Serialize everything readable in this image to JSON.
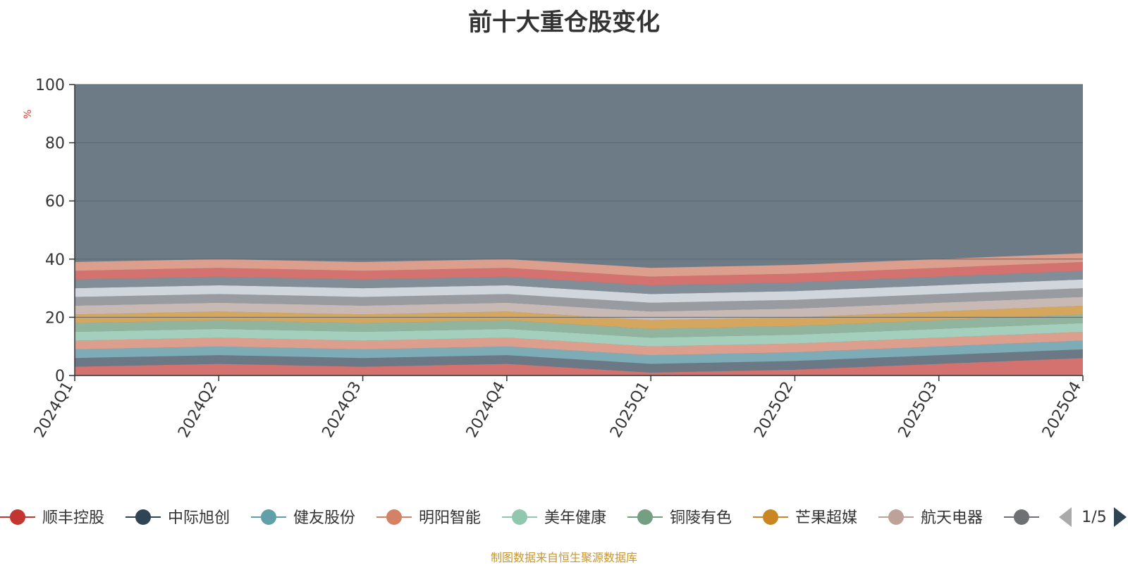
{
  "title": "前十大重仓股变化",
  "footer": "制图数据来自恒生聚源数据库",
  "pagination": {
    "text": "1/5"
  },
  "chart_data": {
    "type": "area",
    "title": "前十大重仓股变化",
    "ylabel": "%",
    "ylim": [
      0,
      100
    ],
    "yticks": [
      0,
      20,
      40,
      60,
      80,
      100
    ],
    "grid": true,
    "legend_position": "bottom",
    "categories": [
      "2024Q1",
      "2024Q2",
      "2024Q3",
      "2024Q4",
      "2025Q1",
      "2025Q2",
      "2025Q3",
      "2025Q4"
    ],
    "background_color": "#6d7b87",
    "series": [
      {
        "name": "顺丰控股",
        "color": "#d9726e",
        "values": [
          3,
          4,
          3,
          4,
          1,
          2,
          4,
          6
        ]
      },
      {
        "name": "中际旭创",
        "color": "#6b7886",
        "values": [
          3,
          3,
          3,
          3,
          3,
          3,
          3,
          3
        ]
      },
      {
        "name": "健友股份",
        "color": "#7eaeb8",
        "values": [
          3,
          3,
          3,
          3,
          3,
          3,
          3,
          3
        ]
      },
      {
        "name": "明阳智能",
        "color": "#e4a18d",
        "values": [
          3,
          3,
          3,
          3,
          3,
          3,
          3,
          3
        ]
      },
      {
        "name": "美年健康",
        "color": "#a8d4c0",
        "values": [
          3,
          3,
          3,
          3,
          3,
          3,
          3,
          3
        ]
      },
      {
        "name": "铜陵有色",
        "color": "#93b79f",
        "values": [
          3,
          3,
          3,
          3,
          3,
          3,
          3,
          3
        ]
      },
      {
        "name": "芒果超媒",
        "color": "#dba95c",
        "values": [
          3,
          3,
          3,
          3,
          3,
          3,
          3,
          3
        ]
      },
      {
        "name": "航天电器",
        "color": "#cfbdb6",
        "values": [
          3,
          3,
          3,
          3,
          3,
          3,
          3,
          3
        ]
      },
      {
        "name": "",
        "color": "#9b9ea2",
        "values": [
          3,
          3,
          3,
          3,
          3,
          3,
          3,
          3
        ]
      },
      {
        "name": "",
        "color": "#d6dbe0",
        "values": [
          3,
          3,
          3,
          3,
          3,
          3,
          3,
          3
        ]
      },
      {
        "name": "",
        "color": "#848f98",
        "values": [
          3,
          3,
          3,
          3,
          3,
          3,
          3,
          3
        ]
      },
      {
        "name": "",
        "color": "#d9726e",
        "values": [
          3,
          3,
          3,
          3,
          3,
          3,
          3,
          3
        ]
      },
      {
        "name": "",
        "color": "#e4a18d",
        "values": [
          3,
          3,
          3,
          3,
          3,
          3,
          3,
          3
        ]
      }
    ],
    "legend_items": [
      {
        "name": "顺丰控股",
        "color": "#c23531"
      },
      {
        "name": "中际旭创",
        "color": "#2f4554"
      },
      {
        "name": "健友股份",
        "color": "#61a0a8"
      },
      {
        "name": "明阳智能",
        "color": "#d48265"
      },
      {
        "name": "美年健康",
        "color": "#91c7ae"
      },
      {
        "name": "铜陵有色",
        "color": "#749f83"
      },
      {
        "name": "芒果超媒",
        "color": "#ca8622"
      },
      {
        "name": "航天电器",
        "color": "#bda29a"
      },
      {
        "name": "",
        "color": "#6e7074"
      }
    ]
  }
}
